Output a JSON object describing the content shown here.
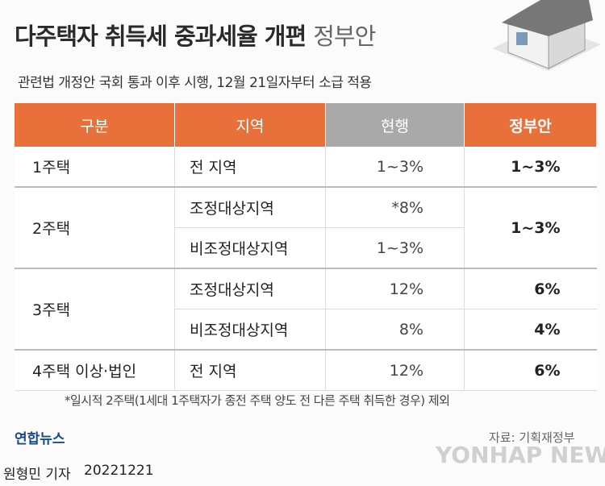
{
  "header": {
    "title": "다주택자 취득세 중과세율 개편",
    "title_suffix": "정부안",
    "subtitle": "관련법 개정안 국회 통과 이후 시행, 12월 21일자부터 소급 적용"
  },
  "table": {
    "headers": [
      "구분",
      "지역",
      "현행",
      "정부안"
    ],
    "groups": [
      {
        "category": "1주택",
        "proposal": "1~3%",
        "rows": [
          {
            "region": "전 지역",
            "current": "1~3%"
          }
        ]
      },
      {
        "category": "2주택",
        "proposal": "1~3%",
        "rows": [
          {
            "region": "조정대상지역",
            "current": "*8%"
          },
          {
            "region": "비조정대상지역",
            "current": "1~3%"
          }
        ]
      },
      {
        "category": "3주택",
        "rows": [
          {
            "region": "조정대상지역",
            "current": "12%",
            "proposal": "6%"
          },
          {
            "region": "비조정대상지역",
            "current": "8%",
            "proposal": "4%"
          }
        ]
      },
      {
        "category": "4주택 이상·법인",
        "proposal": "6%",
        "rows": [
          {
            "region": "전 지역",
            "current": "12%"
          }
        ]
      }
    ]
  },
  "footnote": "*일시적 2주택(1세대 1주택자가 종전 주택 양도 전 다른 주택 취득한 경우) 제외",
  "footer": {
    "logo": "연합뉴스",
    "source": "자료: 기획재정부",
    "watermark": "YONHAP NEWS",
    "byline": "원형민 기자",
    "date": "20221221"
  }
}
